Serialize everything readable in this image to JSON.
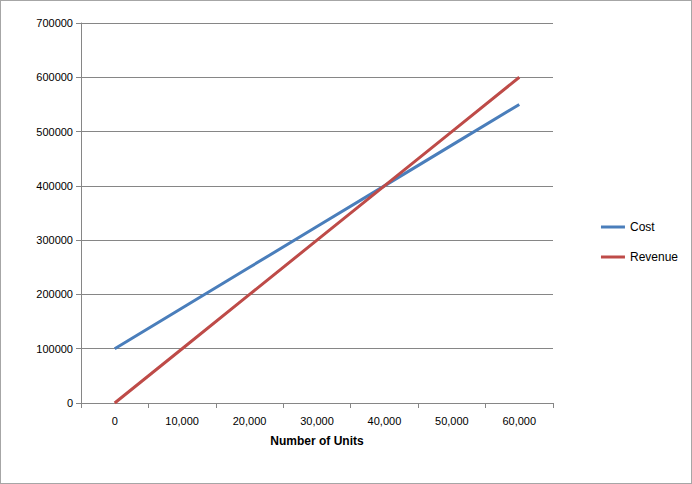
{
  "chart_data": {
    "type": "line",
    "x_label": "Number of Units",
    "categories": [
      "0",
      "10,000",
      "20,000",
      "30,000",
      "40,000",
      "50,000",
      "60,000"
    ],
    "series": [
      {
        "name": "Cost",
        "color": "#4a7ebb",
        "values": [
          100000,
          175000,
          250000,
          325000,
          400000,
          475000,
          550000
        ]
      },
      {
        "name": "Revenue",
        "color": "#be4b48",
        "values": [
          0,
          100000,
          200000,
          300000,
          400000,
          500000,
          600000
        ]
      }
    ],
    "ylim": [
      0,
      700000
    ],
    "yticks": [
      0,
      100000,
      200000,
      300000,
      400000,
      500000,
      600000,
      700000
    ],
    "grid": true,
    "legend": "right"
  }
}
